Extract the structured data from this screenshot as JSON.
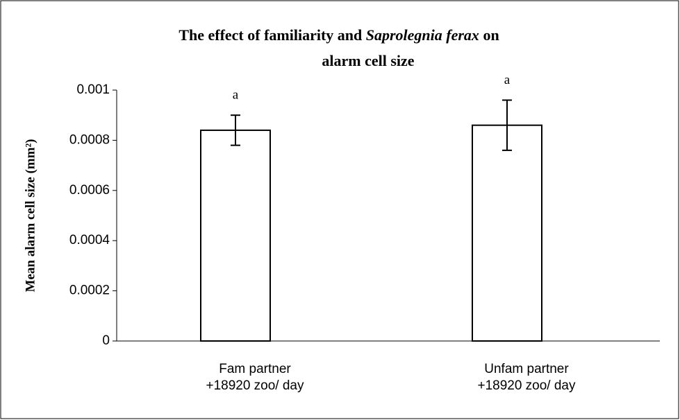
{
  "chart_data": {
    "type": "bar",
    "title": [
      "The effect of familiarity and ",
      "Saprolegnia ferax",
      "  on",
      "alarm cell size"
    ],
    "ylabel": "Mean alarm cell size (mm²)",
    "categories": [
      [
        "Fam partner",
        "+18920 zoo/ day"
      ],
      [
        "Unfam partner",
        "+18920 zoo/ day"
      ]
    ],
    "values": [
      0.00084,
      0.00086
    ],
    "errors": [
      6e-05,
      0.0001
    ],
    "annotations": [
      "a",
      "a"
    ],
    "color": "#ffffff",
    "ylim": [
      0,
      0.001
    ],
    "yticks": [
      0,
      0.0002,
      0.0004,
      0.0006,
      0.0008,
      0.001
    ],
    "grid": false
  }
}
